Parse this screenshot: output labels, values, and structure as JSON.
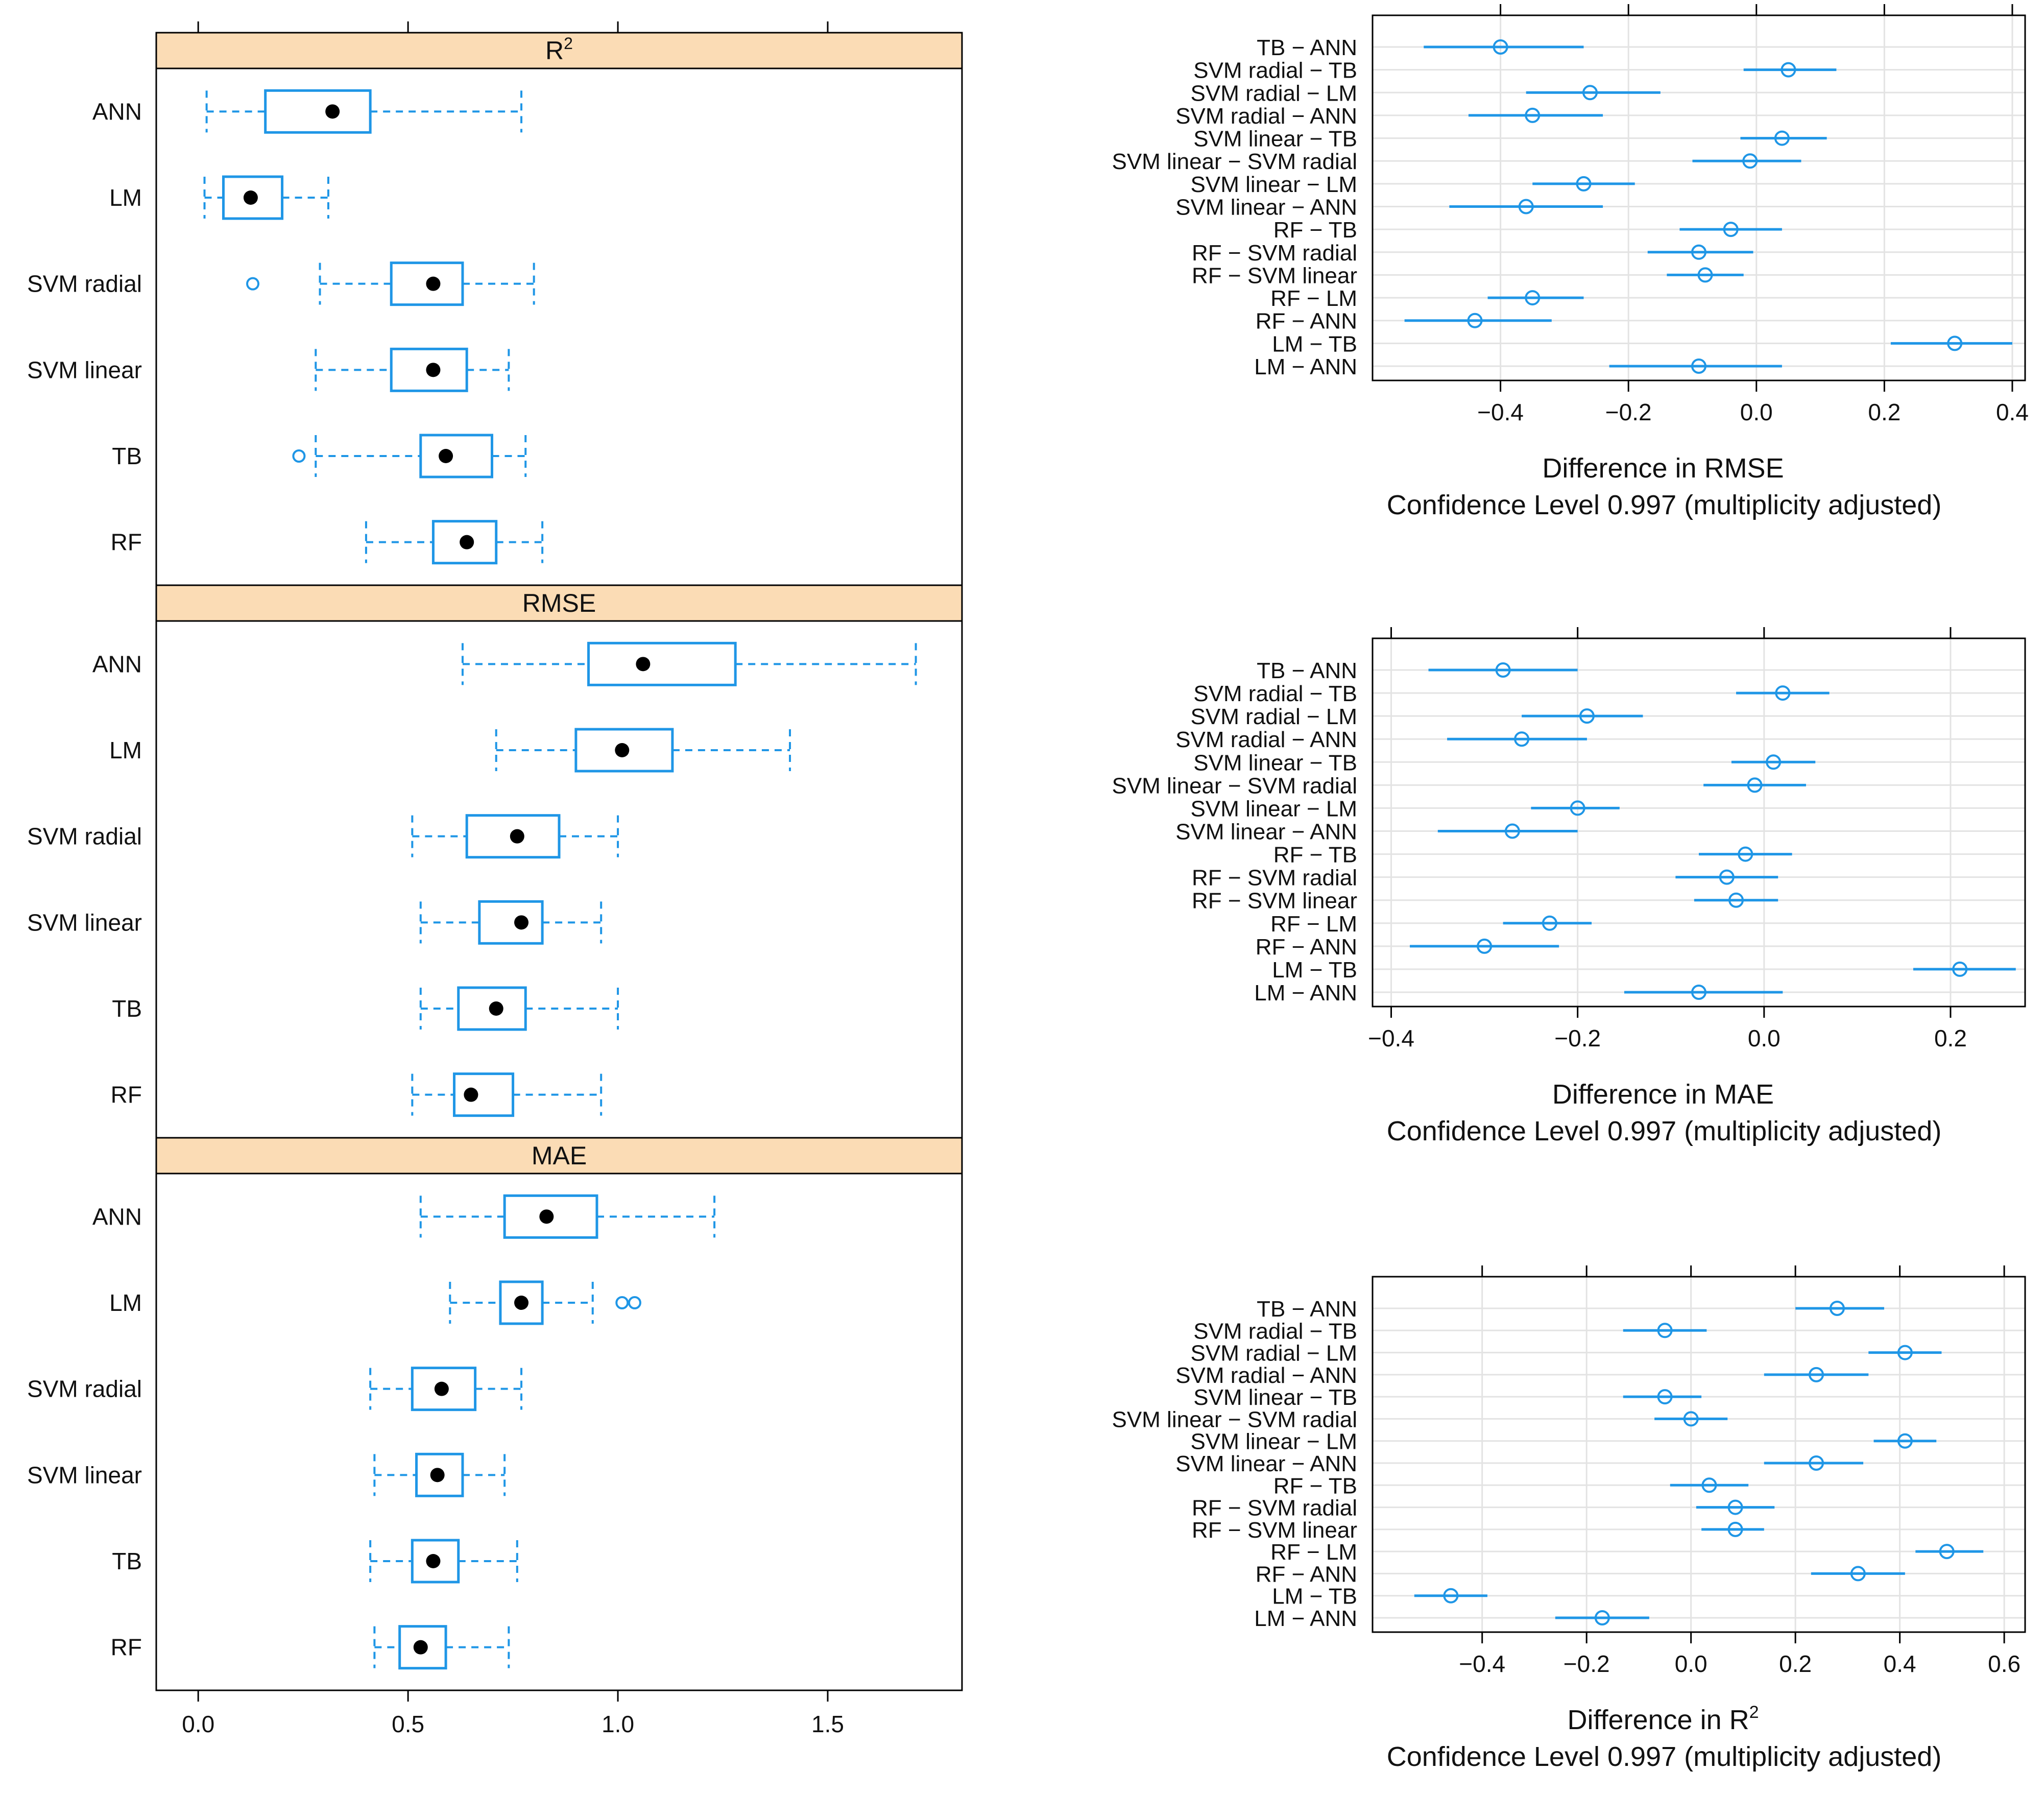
{
  "chart_data": [
    {
      "type": "boxplot",
      "panels": [
        {
          "title": "R",
          "title_sup": "2",
          "boxes": [
            {
              "label": "ANN",
              "whisker_low": 0.02,
              "q1": 0.16,
              "median": 0.32,
              "q3": 0.41,
              "whisker_high": 0.77,
              "outliers": []
            },
            {
              "label": "LM",
              "whisker_low": 0.015,
              "q1": 0.06,
              "median": 0.125,
              "q3": 0.2,
              "whisker_high": 0.31,
              "outliers": []
            },
            {
              "label": "SVM radial",
              "whisker_low": 0.29,
              "q1": 0.46,
              "median": 0.56,
              "q3": 0.63,
              "whisker_high": 0.8,
              "outliers": [
                0.13
              ]
            },
            {
              "label": "SVM linear",
              "whisker_low": 0.28,
              "q1": 0.46,
              "median": 0.56,
              "q3": 0.64,
              "whisker_high": 0.74,
              "outliers": []
            },
            {
              "label": "TB",
              "whisker_low": 0.28,
              "q1": 0.53,
              "median": 0.59,
              "q3": 0.7,
              "whisker_high": 0.78,
              "outliers": [
                0.24
              ]
            },
            {
              "label": "RF",
              "whisker_low": 0.4,
              "q1": 0.56,
              "median": 0.64,
              "q3": 0.71,
              "whisker_high": 0.82,
              "outliers": []
            }
          ]
        },
        {
          "title": "RMSE",
          "title_sup": "",
          "boxes": [
            {
              "label": "ANN",
              "whisker_low": 0.63,
              "q1": 0.93,
              "median": 1.06,
              "q3": 1.28,
              "whisker_high": 1.71,
              "outliers": []
            },
            {
              "label": "LM",
              "whisker_low": 0.71,
              "q1": 0.9,
              "median": 1.01,
              "q3": 1.13,
              "whisker_high": 1.41,
              "outliers": []
            },
            {
              "label": "SVM radial",
              "whisker_low": 0.51,
              "q1": 0.64,
              "median": 0.76,
              "q3": 0.86,
              "whisker_high": 1.0,
              "outliers": []
            },
            {
              "label": "SVM linear",
              "whisker_low": 0.53,
              "q1": 0.67,
              "median": 0.77,
              "q3": 0.82,
              "whisker_high": 0.96,
              "outliers": []
            },
            {
              "label": "TB",
              "whisker_low": 0.53,
              "q1": 0.62,
              "median": 0.71,
              "q3": 0.78,
              "whisker_high": 1.0,
              "outliers": []
            },
            {
              "label": "RF",
              "whisker_low": 0.51,
              "q1": 0.61,
              "median": 0.65,
              "q3": 0.75,
              "whisker_high": 0.96,
              "outliers": []
            }
          ]
        },
        {
          "title": "MAE",
          "title_sup": "",
          "boxes": [
            {
              "label": "ANN",
              "whisker_low": 0.53,
              "q1": 0.73,
              "median": 0.83,
              "q3": 0.95,
              "whisker_high": 1.23,
              "outliers": []
            },
            {
              "label": "LM",
              "whisker_low": 0.6,
              "q1": 0.72,
              "median": 0.77,
              "q3": 0.82,
              "whisker_high": 0.94,
              "outliers": [
                1.01,
                1.04
              ]
            },
            {
              "label": "SVM radial",
              "whisker_low": 0.41,
              "q1": 0.51,
              "median": 0.58,
              "q3": 0.66,
              "whisker_high": 0.77,
              "outliers": []
            },
            {
              "label": "SVM linear",
              "whisker_low": 0.42,
              "q1": 0.52,
              "median": 0.57,
              "q3": 0.63,
              "whisker_high": 0.73,
              "outliers": []
            },
            {
              "label": "TB",
              "whisker_low": 0.41,
              "q1": 0.51,
              "median": 0.56,
              "q3": 0.62,
              "whisker_high": 0.76,
              "outliers": []
            },
            {
              "label": "RF",
              "whisker_low": 0.42,
              "q1": 0.48,
              "median": 0.53,
              "q3": 0.59,
              "whisker_high": 0.74,
              "outliers": []
            }
          ]
        }
      ],
      "x_ticks": [
        0.0,
        0.5,
        1.0,
        1.5
      ],
      "x_tick_labels": [
        "0.0",
        "0.5",
        "1.0",
        "1.5"
      ],
      "xlim": [
        -0.1,
        1.82
      ],
      "colors": {
        "box": "#1f96e6",
        "median_dot": "#000000",
        "strip": "#fbdcb5"
      }
    },
    {
      "type": "interval",
      "title": "",
      "xlabel": "Difference in RMSE",
      "xlabel_sup": "",
      "subtitle": "Confidence Level 0.997  (multiplicity adjusted)",
      "xlim": [
        -0.6,
        0.42
      ],
      "x_ticks": [
        -0.4,
        -0.2,
        0.0,
        0.2,
        0.4
      ],
      "x_tick_labels": [
        "−0.4",
        "−0.2",
        "0.0",
        "0.2",
        "0.4"
      ],
      "comparisons": [
        {
          "label": "TB − ANN",
          "estimate": -0.4,
          "lower": -0.52,
          "upper": -0.27
        },
        {
          "label": "SVM radial − TB",
          "estimate": 0.05,
          "lower": -0.02,
          "upper": 0.125
        },
        {
          "label": "SVM radial − LM",
          "estimate": -0.26,
          "lower": -0.36,
          "upper": -0.15
        },
        {
          "label": "SVM radial − ANN",
          "estimate": -0.35,
          "lower": -0.45,
          "upper": -0.24
        },
        {
          "label": "SVM linear − TB",
          "estimate": 0.04,
          "lower": -0.025,
          "upper": 0.11
        },
        {
          "label": "SVM linear − SVM radial",
          "estimate": -0.01,
          "lower": -0.1,
          "upper": 0.07
        },
        {
          "label": "SVM linear − LM",
          "estimate": -0.27,
          "lower": -0.35,
          "upper": -0.19
        },
        {
          "label": "SVM linear − ANN",
          "estimate": -0.36,
          "lower": -0.48,
          "upper": -0.24
        },
        {
          "label": "RF − TB",
          "estimate": -0.04,
          "lower": -0.12,
          "upper": 0.04
        },
        {
          "label": "RF − SVM radial",
          "estimate": -0.09,
          "lower": -0.17,
          "upper": -0.005
        },
        {
          "label": "RF − SVM linear",
          "estimate": -0.08,
          "lower": -0.14,
          "upper": -0.02
        },
        {
          "label": "RF − LM",
          "estimate": -0.35,
          "lower": -0.42,
          "upper": -0.27
        },
        {
          "label": "RF − ANN",
          "estimate": -0.44,
          "lower": -0.55,
          "upper": -0.32
        },
        {
          "label": "LM − TB",
          "estimate": 0.31,
          "lower": 0.21,
          "upper": 0.4
        },
        {
          "label": "LM − ANN",
          "estimate": -0.09,
          "lower": -0.23,
          "upper": 0.04
        }
      ],
      "colors": {
        "interval": "#1f96e6"
      }
    },
    {
      "type": "interval",
      "title": "",
      "xlabel": "Difference in MAE",
      "xlabel_sup": "",
      "subtitle": "Confidence Level 0.997  (multiplicity adjusted)",
      "xlim": [
        -0.42,
        0.28
      ],
      "x_ticks": [
        -0.4,
        -0.2,
        0.0,
        0.2
      ],
      "x_tick_labels": [
        "−0.4",
        "−0.2",
        "0.0",
        "0.2"
      ],
      "comparisons": [
        {
          "label": "TB − ANN",
          "estimate": -0.28,
          "lower": -0.36,
          "upper": -0.2
        },
        {
          "label": "SVM radial − TB",
          "estimate": 0.02,
          "lower": -0.03,
          "upper": 0.07
        },
        {
          "label": "SVM radial − LM",
          "estimate": -0.19,
          "lower": -0.26,
          "upper": -0.13
        },
        {
          "label": "SVM radial − ANN",
          "estimate": -0.26,
          "lower": -0.34,
          "upper": -0.19
        },
        {
          "label": "SVM linear − TB",
          "estimate": 0.01,
          "lower": -0.035,
          "upper": 0.055
        },
        {
          "label": "SVM linear − SVM radial",
          "estimate": -0.01,
          "lower": -0.065,
          "upper": 0.045
        },
        {
          "label": "SVM linear − LM",
          "estimate": -0.2,
          "lower": -0.25,
          "upper": -0.155
        },
        {
          "label": "SVM linear − ANN",
          "estimate": -0.27,
          "lower": -0.35,
          "upper": -0.2
        },
        {
          "label": "RF − TB",
          "estimate": -0.02,
          "lower": -0.07,
          "upper": 0.03
        },
        {
          "label": "RF − SVM radial",
          "estimate": -0.04,
          "lower": -0.095,
          "upper": 0.015
        },
        {
          "label": "RF − SVM linear",
          "estimate": -0.03,
          "lower": -0.075,
          "upper": 0.015
        },
        {
          "label": "RF − LM",
          "estimate": -0.23,
          "lower": -0.28,
          "upper": -0.185
        },
        {
          "label": "RF − ANN",
          "estimate": -0.3,
          "lower": -0.38,
          "upper": -0.22
        },
        {
          "label": "LM − TB",
          "estimate": 0.21,
          "lower": 0.16,
          "upper": 0.27
        },
        {
          "label": "LM − ANN",
          "estimate": -0.07,
          "lower": -0.15,
          "upper": 0.02
        }
      ],
      "colors": {
        "interval": "#1f96e6"
      }
    },
    {
      "type": "interval",
      "title": "",
      "xlabel": "Difference in R",
      "xlabel_sup": "2",
      "subtitle": "Confidence Level 0.997  (multiplicity adjusted)",
      "xlim": [
        -0.61,
        0.64
      ],
      "x_ticks": [
        -0.4,
        -0.2,
        0.0,
        0.2,
        0.4,
        0.6
      ],
      "x_tick_labels": [
        "−0.4",
        "−0.2",
        "0.0",
        "0.2",
        "0.4",
        "0.6"
      ],
      "comparisons": [
        {
          "label": "TB − ANN",
          "estimate": 0.28,
          "lower": 0.2,
          "upper": 0.37
        },
        {
          "label": "SVM radial − TB",
          "estimate": -0.05,
          "lower": -0.13,
          "upper": 0.03
        },
        {
          "label": "SVM radial − LM",
          "estimate": 0.41,
          "lower": 0.34,
          "upper": 0.48
        },
        {
          "label": "SVM radial − ANN",
          "estimate": 0.24,
          "lower": 0.14,
          "upper": 0.34
        },
        {
          "label": "SVM linear − TB",
          "estimate": -0.05,
          "lower": -0.13,
          "upper": 0.02
        },
        {
          "label": "SVM linear − SVM radial",
          "estimate": 0.0,
          "lower": -0.07,
          "upper": 0.07
        },
        {
          "label": "SVM linear − LM",
          "estimate": 0.41,
          "lower": 0.35,
          "upper": 0.47
        },
        {
          "label": "SVM linear − ANN",
          "estimate": 0.24,
          "lower": 0.14,
          "upper": 0.33
        },
        {
          "label": "RF − TB",
          "estimate": 0.035,
          "lower": -0.04,
          "upper": 0.11
        },
        {
          "label": "RF − SVM radial",
          "estimate": 0.085,
          "lower": 0.01,
          "upper": 0.16
        },
        {
          "label": "RF − SVM linear",
          "estimate": 0.085,
          "lower": 0.02,
          "upper": 0.14
        },
        {
          "label": "RF − LM",
          "estimate": 0.49,
          "lower": 0.43,
          "upper": 0.56
        },
        {
          "label": "RF − ANN",
          "estimate": 0.32,
          "lower": 0.23,
          "upper": 0.41
        },
        {
          "label": "LM − TB",
          "estimate": -0.46,
          "lower": -0.53,
          "upper": -0.39
        },
        {
          "label": "LM − ANN",
          "estimate": -0.17,
          "lower": -0.26,
          "upper": -0.08
        }
      ],
      "colors": {
        "interval": "#1f96e6"
      }
    }
  ]
}
